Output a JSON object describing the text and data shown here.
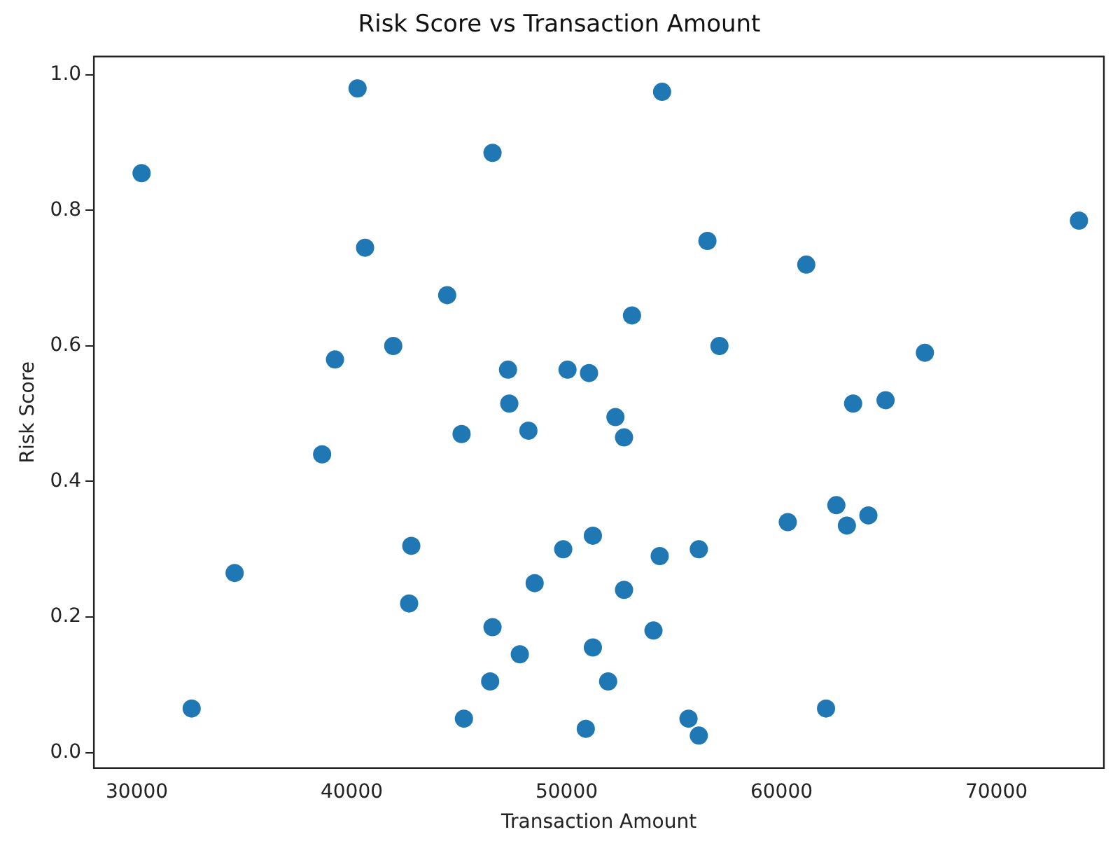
{
  "chart_data": {
    "type": "scatter",
    "title": "Risk Score vs Transaction Amount",
    "xlabel": "Transaction Amount",
    "ylabel": "Risk Score",
    "x": [
      40270,
      46550,
      30220,
      40620,
      44440,
      41930,
      39220,
      47270,
      50040,
      51040,
      47330,
      48220,
      45110,
      38620,
      54440,
      73840,
      56550,
      61150,
      53040,
      57110,
      66670,
      52270,
      64840,
      63330,
      52670,
      42770,
      34550,
      49840,
      51220,
      48510,
      42670,
      46550,
      47820,
      46440,
      32550,
      45220,
      50890,
      51220,
      54330,
      56150,
      60290,
      62550,
      63040,
      64040,
      52670,
      54040,
      51930,
      55670,
      56150,
      62070
    ],
    "series": [
      {
        "color": "#1f77b4",
        "values": [
          0.98,
          0.885,
          0.855,
          0.745,
          0.675,
          0.6,
          0.58,
          0.565,
          0.565,
          0.56,
          0.515,
          0.475,
          0.47,
          0.44,
          0.975,
          0.785,
          0.755,
          0.72,
          0.645,
          0.6,
          0.59,
          0.495,
          0.52,
          0.515,
          0.465,
          0.305,
          0.265,
          0.3,
          0.32,
          0.25,
          0.22,
          0.185,
          0.145,
          0.105,
          0.065,
          0.05,
          0.035,
          0.155,
          0.29,
          0.3,
          0.34,
          0.365,
          0.335,
          0.35,
          0.24,
          0.18,
          0.105,
          0.05,
          0.025,
          0.065
        ]
      }
    ],
    "xlim": [
      28000,
      75000
    ],
    "xticks": [
      30000,
      40000,
      50000,
      60000,
      70000
    ],
    "ylim": [
      -0.023,
      1.027
    ],
    "yticks": [
      {
        "value": 0,
        "label": "0.0"
      },
      {
        "value": 0.2,
        "label": "0.2"
      },
      {
        "value": 0.4,
        "label": "0.4"
      },
      {
        "value": 0.6,
        "label": "0.6"
      },
      {
        "value": 0.8,
        "label": "0.8"
      },
      {
        "value": 1,
        "label": "1.0"
      }
    ],
    "grid": false,
    "legend": false,
    "marker": "circle"
  }
}
